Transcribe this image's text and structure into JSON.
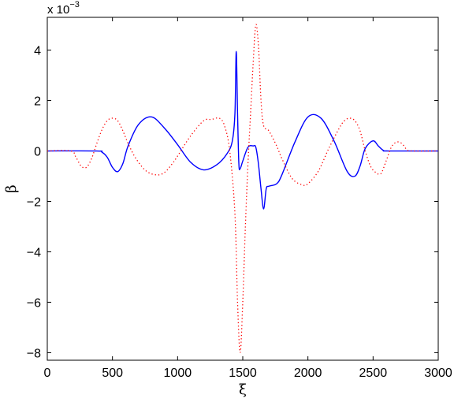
{
  "chart_data": {
    "type": "line",
    "title": "",
    "xlabel": "ξ",
    "ylabel": "β",
    "y_multiplier_text": "x 10",
    "y_multiplier_exp": "−3",
    "xlim": [
      0,
      3000
    ],
    "ylim": [
      -8.3,
      5.3
    ],
    "x_ticks": [
      0,
      500,
      1000,
      1500,
      2000,
      2500,
      3000
    ],
    "y_ticks": [
      -8,
      -6,
      -4,
      -2,
      0,
      2,
      4
    ],
    "grid": false,
    "legend": "none",
    "series": [
      {
        "style": "solid",
        "color": "#0000ff",
        "x": [
          0,
          380,
          420,
          460,
          500,
          540,
          580,
          620,
          700,
          800,
          900,
          1000,
          1100,
          1200,
          1300,
          1380,
          1420,
          1440,
          1450,
          1460,
          1470,
          1480,
          1500,
          1540,
          1580,
          1600,
          1620,
          1640,
          1660,
          1680,
          1700,
          1760,
          1800,
          1900,
          2000,
          2100,
          2200,
          2300,
          2360,
          2400,
          2440,
          2500,
          2540,
          2580,
          2620,
          3000
        ],
        "y": [
          0,
          0,
          -0.05,
          -0.25,
          -0.65,
          -0.82,
          -0.5,
          0.2,
          1.05,
          1.35,
          0.9,
          0.25,
          -0.45,
          -0.75,
          -0.55,
          -0.1,
          0.4,
          1.5,
          3.95,
          1.5,
          -0.5,
          -0.7,
          -0.4,
          0.15,
          0.2,
          0.15,
          -0.5,
          -1.5,
          -2.3,
          -1.5,
          -1.4,
          -1.3,
          -0.95,
          0.35,
          1.35,
          1.3,
          0.4,
          -0.8,
          -1.0,
          -0.6,
          0.1,
          0.4,
          0.2,
          0.02,
          0,
          0
        ]
      },
      {
        "style": "dotted",
        "color": "#ff0000",
        "x": [
          0,
          180,
          220,
          260,
          300,
          340,
          380,
          420,
          460,
          500,
          540,
          580,
          620,
          680,
          760,
          840,
          900,
          960,
          1000,
          1100,
          1200,
          1260,
          1320,
          1360,
          1400,
          1440,
          1460,
          1480,
          1500,
          1520,
          1540,
          1560,
          1580,
          1600,
          1620,
          1640,
          1660,
          1700,
          1760,
          1800,
          1880,
          1960,
          2000,
          2080,
          2160,
          2240,
          2280,
          2320,
          2360,
          2400,
          2440,
          2480,
          2520,
          2560,
          2600,
          2640,
          2680,
          2720,
          2760,
          2800,
          3000
        ],
        "y": [
          0,
          0,
          -0.25,
          -0.6,
          -0.65,
          -0.3,
          0.3,
          0.85,
          1.2,
          1.3,
          1.2,
          0.8,
          0.3,
          -0.3,
          -0.8,
          -0.95,
          -0.85,
          -0.5,
          -0.2,
          0.6,
          1.2,
          1.25,
          1.3,
          1.0,
          0.0,
          -2.5,
          -6.0,
          -8.0,
          -6.0,
          -3.0,
          -0.5,
          1.5,
          3.5,
          5.0,
          4.2,
          2.0,
          1.0,
          0.8,
          0.2,
          -0.3,
          -1.1,
          -1.35,
          -1.3,
          -0.8,
          0.1,
          0.9,
          1.2,
          1.3,
          1.2,
          0.8,
          0.0,
          -0.6,
          -0.85,
          -0.9,
          -0.4,
          0.15,
          0.35,
          0.3,
          0.05,
          0,
          0
        ]
      }
    ]
  }
}
